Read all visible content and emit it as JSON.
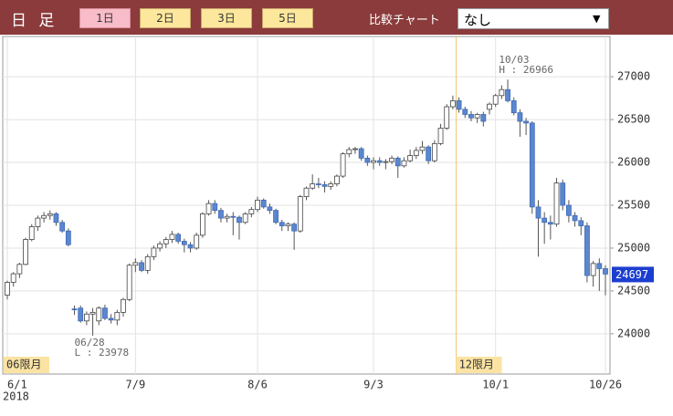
{
  "header": {
    "title": "日 足",
    "periods": [
      "1日",
      "2日",
      "3日",
      "5日"
    ],
    "compare_label": "比較チャート",
    "compare_value": "なし",
    "select_arrow": "▼"
  },
  "chart_data": {
    "type": "candlestick",
    "categories": [
      "6/1",
      null,
      null,
      null,
      null,
      null,
      null,
      null,
      null,
      null,
      null,
      null,
      null,
      null,
      null,
      null,
      null,
      null,
      null,
      null,
      null,
      "7/9",
      null,
      null,
      null,
      null,
      null,
      null,
      null,
      null,
      null,
      null,
      null,
      null,
      null,
      null,
      null,
      null,
      null,
      null,
      null,
      "8/6",
      null,
      null,
      null,
      null,
      null,
      null,
      null,
      null,
      null,
      null,
      null,
      null,
      null,
      null,
      null,
      null,
      null,
      null,
      "9/3",
      null,
      null,
      null,
      null,
      null,
      null,
      null,
      null,
      null,
      null,
      null,
      null,
      null,
      null,
      null,
      null,
      null,
      null,
      null,
      "10/1",
      null,
      null,
      null,
      null,
      null,
      null,
      null,
      null,
      null,
      null,
      null,
      null,
      null,
      null,
      null,
      null,
      null,
      "10/26"
    ],
    "year_label": "2018",
    "series": {
      "up_color": "#ffffff",
      "down_color": "#5b87d0",
      "open": [
        24450,
        24600,
        24700,
        24810,
        25100,
        25250,
        25350,
        25380,
        25400,
        25300,
        25200,
        24290,
        24300,
        24150,
        24230,
        24150,
        24300,
        24180,
        24160,
        24250,
        24400,
        24800,
        24830,
        24740,
        24900,
        25000,
        25050,
        25100,
        25160,
        25080,
        25040,
        25000,
        25150,
        25400,
        25520,
        25440,
        25350,
        25370,
        25360,
        25300,
        25400,
        25450,
        25560,
        25480,
        25440,
        25300,
        25260,
        25280,
        25200,
        25600,
        25700,
        25750,
        25740,
        25720,
        25750,
        25840,
        26100,
        26150,
        26160,
        26050,
        26000,
        26020,
        26000,
        26010,
        26050,
        25960,
        26020,
        26080,
        26140,
        26180,
        26020,
        26220,
        26400,
        26650,
        26720,
        26620,
        26560,
        26520,
        26560,
        26620,
        26680,
        26780,
        26850,
        26720,
        26580,
        26480,
        26460,
        25480,
        25350,
        25300,
        25280,
        25760,
        25500,
        25380,
        25320,
        25260,
        24680,
        24820,
        24760
      ],
      "high": [
        24620,
        24720,
        24830,
        25120,
        25280,
        25380,
        25420,
        25440,
        25420,
        25330,
        25230,
        24330,
        24330,
        24260,
        24300,
        24320,
        24340,
        24230,
        24280,
        24420,
        24820,
        24880,
        24860,
        24930,
        25030,
        25080,
        25130,
        25200,
        25180,
        25110,
        25070,
        25180,
        25420,
        25560,
        25560,
        25470,
        25400,
        25420,
        25380,
        25420,
        25480,
        25600,
        25580,
        25520,
        25460,
        25330,
        25300,
        25300,
        25620,
        25720,
        25860,
        25820,
        25780,
        25780,
        25860,
        26120,
        26180,
        26180,
        26180,
        26080,
        26060,
        26060,
        26040,
        26080,
        26070,
        26060,
        26150,
        26180,
        26250,
        26200,
        26260,
        26450,
        26680,
        26780,
        26760,
        26650,
        26600,
        26580,
        26590,
        26700,
        26800,
        26900,
        26966,
        26760,
        26620,
        26520,
        26480,
        25560,
        25420,
        25380,
        25820,
        25800,
        25560,
        25420,
        25360,
        25300,
        24850,
        24880,
        24800
      ],
      "low": [
        24400,
        24550,
        24650,
        24800,
        25080,
        25200,
        25300,
        25330,
        25260,
        25180,
        25020,
        24220,
        24130,
        24100,
        23978,
        24100,
        24160,
        24120,
        24100,
        24200,
        24380,
        24720,
        24720,
        24700,
        24860,
        24960,
        25000,
        25060,
        25050,
        24950,
        24950,
        24980,
        25120,
        25380,
        25400,
        25300,
        25300,
        25150,
        25100,
        25280,
        25360,
        25420,
        25460,
        25400,
        25280,
        25200,
        25200,
        24980,
        25180,
        25560,
        25680,
        25700,
        25650,
        25680,
        25720,
        25820,
        26060,
        26100,
        26020,
        25960,
        25920,
        25960,
        25920,
        25980,
        25820,
        25940,
        26000,
        26040,
        26100,
        25980,
        26000,
        26200,
        26380,
        26620,
        26580,
        26520,
        26480,
        26460,
        26420,
        26560,
        26650,
        26740,
        26700,
        26550,
        26300,
        26320,
        25400,
        24900,
        25050,
        25100,
        25250,
        25440,
        25300,
        25250,
        25150,
        24600,
        24550,
        24500,
        24450
      ],
      "close": [
        24600,
        24700,
        24810,
        25100,
        25250,
        25350,
        25380,
        25400,
        25300,
        25200,
        25040,
        24280,
        24150,
        24230,
        24250,
        24300,
        24180,
        24160,
        24250,
        24400,
        24800,
        24830,
        24740,
        24900,
        25000,
        25050,
        25100,
        25160,
        25080,
        25040,
        25000,
        25150,
        25400,
        25520,
        25440,
        25350,
        25370,
        25360,
        25300,
        25400,
        25450,
        25560,
        25480,
        25440,
        25300,
        25260,
        25280,
        25200,
        25600,
        25700,
        25750,
        25740,
        25720,
        25750,
        25840,
        26100,
        26150,
        26160,
        26050,
        26000,
        26020,
        26000,
        26010,
        26050,
        25960,
        26020,
        26080,
        26140,
        26180,
        26020,
        26220,
        26400,
        26650,
        26720,
        26620,
        26560,
        26520,
        26560,
        26480,
        26680,
        26780,
        26850,
        26720,
        26580,
        26480,
        26460,
        25480,
        25350,
        25300,
        25280,
        25760,
        25500,
        25380,
        25320,
        25260,
        24680,
        24820,
        24760,
        24697
      ]
    },
    "ylim": [
      23530,
      27470
    ],
    "yticks": [
      24000,
      24500,
      25000,
      25500,
      26000,
      26500,
      27000
    ],
    "grid": true,
    "annotations": [
      {
        "date": "06/28",
        "text": "L : 23978"
      },
      {
        "date": "10/03",
        "text": "H : 26966"
      }
    ],
    "contract_labels": [
      "06限月",
      "12限月"
    ]
  }
}
